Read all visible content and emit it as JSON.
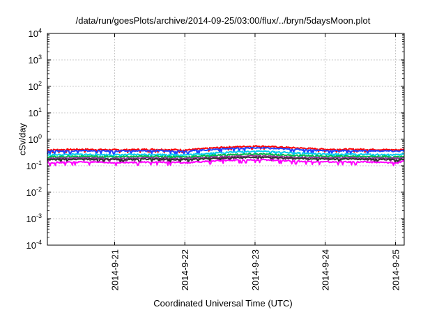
{
  "chart_data": {
    "type": "line",
    "title": "/data/run/goesPlots/archive/2014-09-25/03:00/flux/../bryn/5daysMoon.plot",
    "xlabel": "Coordinated Universal Time (UTC)",
    "ylabel": "cSv/day",
    "x_range": [
      "2014-09-20T01:00",
      "2014-09-25T03:00"
    ],
    "ylim": [
      0.0001,
      10000
    ],
    "yscale": "log",
    "grid": true,
    "y_ticks": [
      {
        "value": 0.0001,
        "base": "10",
        "exp": "-4"
      },
      {
        "value": 0.001,
        "base": "10",
        "exp": "-3"
      },
      {
        "value": 0.01,
        "base": "10",
        "exp": "-2"
      },
      {
        "value": 0.1,
        "base": "10",
        "exp": "-1"
      },
      {
        "value": 1,
        "base": "10",
        "exp": "0"
      },
      {
        "value": 10,
        "base": "10",
        "exp": "1"
      },
      {
        "value": 100,
        "base": "10",
        "exp": "2"
      },
      {
        "value": 1000,
        "base": "10",
        "exp": "3"
      },
      {
        "value": 10000,
        "base": "10",
        "exp": "4"
      }
    ],
    "x_ticks": [
      {
        "value": "2014-09-21T00:00",
        "label": "2014-9-21"
      },
      {
        "value": "2014-09-22T00:00",
        "label": "2014-9-22"
      },
      {
        "value": "2014-09-23T00:00",
        "label": "2014-9-23"
      },
      {
        "value": "2014-09-24T00:00",
        "label": "2014-9-24"
      },
      {
        "value": "2014-09-25T00:00",
        "label": "2014-9-25"
      }
    ],
    "x": [
      "2014-09-20T01:00",
      "2014-09-20T13:00",
      "2014-09-21T01:00",
      "2014-09-21T13:00",
      "2014-09-22T01:00",
      "2014-09-22T13:00",
      "2014-09-23T01:00",
      "2014-09-23T13:00",
      "2014-09-24T01:00",
      "2014-09-24T13:00",
      "2014-09-25T01:00",
      "2014-09-25T03:00"
    ],
    "series": [
      {
        "color": "#ff0000",
        "values": [
          0.4,
          0.42,
          0.4,
          0.42,
          0.4,
          0.5,
          0.56,
          0.48,
          0.42,
          0.42,
          0.4,
          0.42
        ]
      },
      {
        "color": "#2244ff",
        "values": [
          0.36,
          0.37,
          0.36,
          0.37,
          0.36,
          0.44,
          0.48,
          0.42,
          0.37,
          0.37,
          0.36,
          0.38
        ]
      },
      {
        "color": "#00ccee",
        "values": [
          0.26,
          0.27,
          0.26,
          0.27,
          0.26,
          0.32,
          0.36,
          0.31,
          0.27,
          0.27,
          0.26,
          0.28
        ]
      },
      {
        "color": "#00bb44",
        "values": [
          0.22,
          0.23,
          0.22,
          0.23,
          0.22,
          0.26,
          0.28,
          0.25,
          0.23,
          0.23,
          0.22,
          0.23
        ]
      },
      {
        "color": "#993399",
        "values": [
          0.19,
          0.2,
          0.19,
          0.2,
          0.19,
          0.22,
          0.24,
          0.21,
          0.2,
          0.2,
          0.19,
          0.2
        ]
      },
      {
        "color": "#333333",
        "values": [
          0.17,
          0.18,
          0.17,
          0.18,
          0.17,
          0.2,
          0.21,
          0.19,
          0.18,
          0.18,
          0.17,
          0.18
        ]
      },
      {
        "color": "#ff00ff",
        "values": [
          0.13,
          0.14,
          0.13,
          0.14,
          0.13,
          0.16,
          0.17,
          0.15,
          0.14,
          0.14,
          0.13,
          0.15
        ]
      }
    ]
  }
}
